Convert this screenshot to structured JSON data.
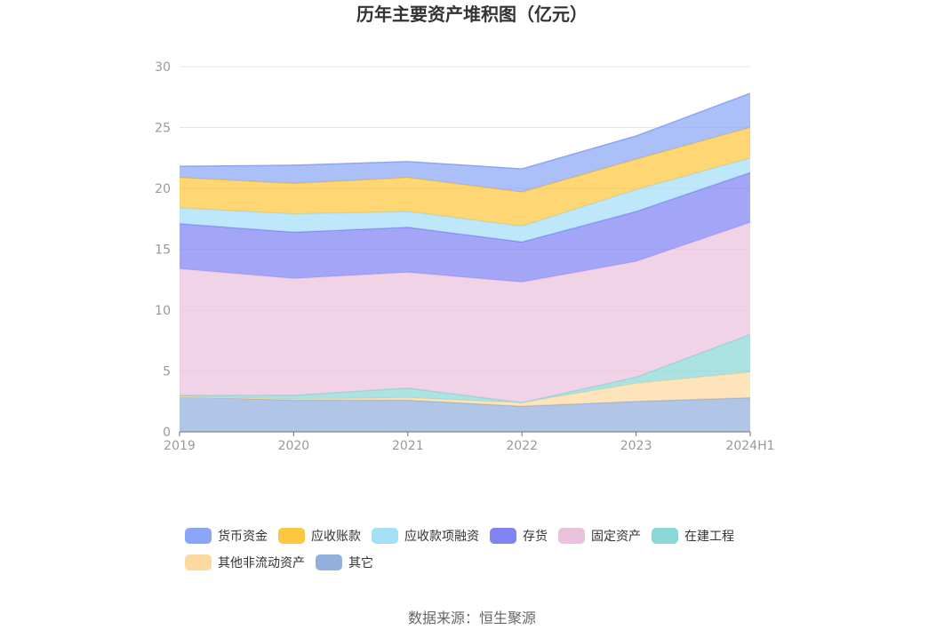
{
  "chart_data": {
    "type": "area",
    "stacked": true,
    "title": "历年主要资产堆积图（亿元）",
    "categories": [
      "2019",
      "2020",
      "2021",
      "2022",
      "2023",
      "2024H1"
    ],
    "ylim": [
      0,
      30
    ],
    "yticks": [
      0,
      5,
      10,
      15,
      20,
      25,
      30
    ],
    "grid": true,
    "legend_position": "bottom",
    "series": [
      {
        "name": "其它",
        "color": "#93b0dc",
        "values": [
          2.9,
          2.6,
          2.6,
          2.1,
          2.5,
          2.8
        ]
      },
      {
        "name": "其他非流动资产",
        "color": "#fcd9a0",
        "values": [
          0.0,
          0.1,
          0.2,
          0.3,
          1.5,
          2.1
        ]
      },
      {
        "name": "在建工程",
        "color": "#8ad8d8",
        "values": [
          0.1,
          0.3,
          0.8,
          0.0,
          0.5,
          3.1
        ]
      },
      {
        "name": "固定资产",
        "color": "#eac2de",
        "values": [
          10.4,
          9.6,
          9.5,
          9.9,
          9.5,
          9.2
        ]
      },
      {
        "name": "存货",
        "color": "#8083f2",
        "values": [
          3.7,
          3.8,
          3.7,
          3.3,
          4.1,
          4.1
        ]
      },
      {
        "name": "应收款项融资",
        "color": "#a5dff7",
        "values": [
          1.3,
          1.5,
          1.3,
          1.3,
          1.8,
          1.2
        ]
      },
      {
        "name": "应收账款",
        "color": "#fec63e",
        "values": [
          2.5,
          2.5,
          2.8,
          2.8,
          2.5,
          2.5
        ]
      },
      {
        "name": "货币资金",
        "color": "#8aa7f7",
        "values": [
          0.9,
          1.5,
          1.3,
          1.9,
          1.9,
          2.8
        ]
      }
    ],
    "legend_order": [
      "货币资金",
      "应收账款",
      "应收款项融资",
      "存货",
      "固定资产",
      "在建工程",
      "其他非流动资产",
      "其它"
    ]
  },
  "source": "数据来源：恒生聚源"
}
